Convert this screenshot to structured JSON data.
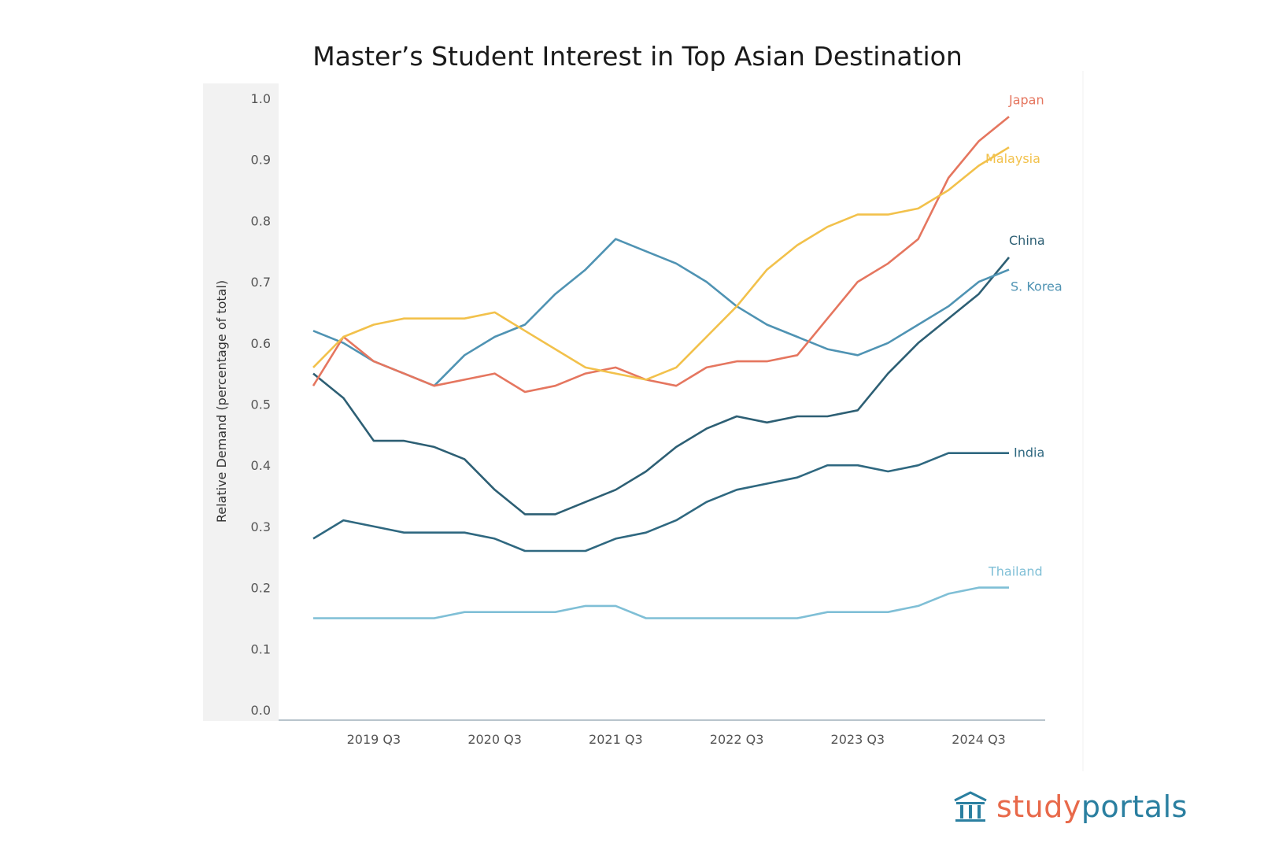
{
  "colors": {
    "Japan": "#e5765f",
    "Malaysia": "#f2c14b",
    "China": "#2d5f74",
    "S. Korea": "#4f93b3",
    "India": "#2f6880",
    "Thailand": "#7fbfd6",
    "logo_orange": "#e8694a",
    "logo_blue": "#2a7fa0"
  },
  "logo": {
    "part1": "study",
    "part2": "portals",
    "icon": "building-columns-icon"
  },
  "chart_data": {
    "type": "line",
    "title": "Master’s Student Interest in Top Asian Destination",
    "xlabel": "",
    "ylabel": "Relative Demand (percentage of total)",
    "ylim": [
      0,
      1.0
    ],
    "yticks": [
      "0.0",
      "0.1",
      "0.2",
      "0.3",
      "0.4",
      "0.5",
      "0.6",
      "0.7",
      "0.8",
      "0.9",
      "1.0"
    ],
    "x": [
      "2019 Q1",
      "2019 Q2",
      "2019 Q3",
      "2019 Q4",
      "2020 Q1",
      "2020 Q2",
      "2020 Q3",
      "2020 Q4",
      "2021 Q1",
      "2021 Q2",
      "2021 Q3",
      "2021 Q4",
      "2022 Q1",
      "2022 Q2",
      "2022 Q3",
      "2022 Q4",
      "2023 Q1",
      "2023 Q2",
      "2023 Q3",
      "2023 Q4",
      "2024 Q1",
      "2024 Q2",
      "2024 Q3",
      "2024 Q4"
    ],
    "xticks": [
      "2019 Q3",
      "2020 Q3",
      "2021 Q3",
      "2022 Q3",
      "2023 Q3",
      "2024 Q3"
    ],
    "legend": "inline labels at line ends",
    "grid": false,
    "series": [
      {
        "name": "Japan",
        "values": [
          0.53,
          0.61,
          0.57,
          0.55,
          0.53,
          0.54,
          0.55,
          0.52,
          0.53,
          0.55,
          0.56,
          0.54,
          0.53,
          0.56,
          0.57,
          0.57,
          0.58,
          0.64,
          0.7,
          0.73,
          0.77,
          0.87,
          0.93,
          0.97
        ]
      },
      {
        "name": "Malaysia",
        "values": [
          0.56,
          0.61,
          0.63,
          0.64,
          0.64,
          0.64,
          0.65,
          0.62,
          0.59,
          0.56,
          0.55,
          0.54,
          0.56,
          0.61,
          0.66,
          0.72,
          0.76,
          0.79,
          0.81,
          0.81,
          0.82,
          0.85,
          0.89,
          0.92
        ]
      },
      {
        "name": "China",
        "values": [
          0.55,
          0.51,
          0.44,
          0.44,
          0.43,
          0.41,
          0.36,
          0.32,
          0.32,
          0.34,
          0.36,
          0.39,
          0.43,
          0.46,
          0.48,
          0.47,
          0.48,
          0.48,
          0.49,
          0.55,
          0.6,
          0.64,
          0.68,
          0.74
        ]
      },
      {
        "name": "S. Korea",
        "values": [
          0.62,
          0.6,
          0.57,
          0.55,
          0.53,
          0.58,
          0.61,
          0.63,
          0.68,
          0.72,
          0.77,
          0.75,
          0.73,
          0.7,
          0.66,
          0.63,
          0.61,
          0.59,
          0.58,
          0.6,
          0.63,
          0.66,
          0.7,
          0.72
        ]
      },
      {
        "name": "India",
        "values": [
          0.28,
          0.31,
          0.3,
          0.29,
          0.29,
          0.29,
          0.28,
          0.26,
          0.26,
          0.26,
          0.28,
          0.29,
          0.31,
          0.34,
          0.36,
          0.37,
          0.38,
          0.4,
          0.4,
          0.39,
          0.4,
          0.42,
          0.42,
          0.42
        ]
      },
      {
        "name": "Thailand",
        "values": [
          0.15,
          0.15,
          0.15,
          0.15,
          0.15,
          0.16,
          0.16,
          0.16,
          0.16,
          0.17,
          0.17,
          0.15,
          0.15,
          0.15,
          0.15,
          0.15,
          0.15,
          0.16,
          0.16,
          0.16,
          0.17,
          0.19,
          0.2,
          0.2
        ]
      }
    ]
  }
}
